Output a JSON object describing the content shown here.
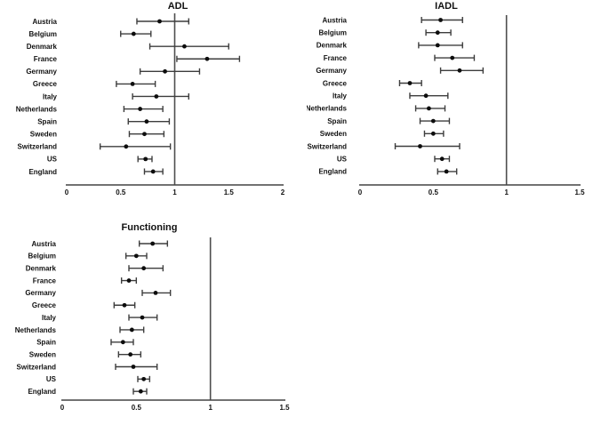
{
  "page": {
    "background": "#ffffff"
  },
  "colors": {
    "error_bar": "#3d3d3d",
    "marker": "#0d0d0d",
    "axis_line": "#444444",
    "reference_line": "#4d4d4d",
    "text": "#111111"
  },
  "chart_data": [
    {
      "type": "scatter",
      "subtype": "forest-plot-horizontal-error-bars",
      "title": "ADL",
      "xlabel": "",
      "ylabel": "",
      "grid": false,
      "legend": null,
      "xlim": [
        0,
        2
      ],
      "xticks": [
        "0",
        "0.5",
        "1",
        "1.5",
        "2"
      ],
      "xtick_values": [
        0,
        0.5,
        1,
        1.5,
        2
      ],
      "refline_x": 1,
      "categories": [
        "Austria",
        "Belgium",
        "Denmark",
        "France",
        "Germany",
        "Greece",
        "Italy",
        "Netherlands",
        "Spain",
        "Sweden",
        "Switzerland",
        "US",
        "England"
      ],
      "series": [
        {
          "name": "estimate-with-95ci",
          "points": [
            {
              "x": 0.86,
              "lo": 0.65,
              "hi": 1.13
            },
            {
              "x": 0.62,
              "lo": 0.5,
              "hi": 0.78
            },
            {
              "x": 1.09,
              "lo": 0.77,
              "hi": 1.5
            },
            {
              "x": 1.3,
              "lo": 1.02,
              "hi": 1.6
            },
            {
              "x": 0.91,
              "lo": 0.68,
              "hi": 1.23
            },
            {
              "x": 0.61,
              "lo": 0.46,
              "hi": 0.82
            },
            {
              "x": 0.83,
              "lo": 0.61,
              "hi": 1.13
            },
            {
              "x": 0.68,
              "lo": 0.53,
              "hi": 0.89
            },
            {
              "x": 0.74,
              "lo": 0.57,
              "hi": 0.95
            },
            {
              "x": 0.72,
              "lo": 0.58,
              "hi": 0.9
            },
            {
              "x": 0.55,
              "lo": 0.31,
              "hi": 0.96
            },
            {
              "x": 0.73,
              "lo": 0.66,
              "hi": 0.79
            },
            {
              "x": 0.8,
              "lo": 0.72,
              "hi": 0.89
            }
          ]
        }
      ]
    },
    {
      "type": "scatter",
      "subtype": "forest-plot-horizontal-error-bars",
      "title": "IADL",
      "xlabel": "",
      "ylabel": "",
      "grid": false,
      "legend": null,
      "xlim": [
        0,
        1.5
      ],
      "xticks": [
        "0",
        "0.5",
        "1",
        "1.5"
      ],
      "xtick_values": [
        0,
        0.5,
        1,
        1.5
      ],
      "refline_x": 1,
      "categories": [
        "Austria",
        "Belgium",
        "Denmark",
        "France",
        "Germany",
        "Greece",
        "Italy",
        "Netherlands",
        "Spain",
        "Sweden",
        "Switzerland",
        "US",
        "England"
      ],
      "series": [
        {
          "name": "estimate-with-95ci",
          "points": [
            {
              "x": 0.55,
              "lo": 0.42,
              "hi": 0.7
            },
            {
              "x": 0.53,
              "lo": 0.45,
              "hi": 0.62
            },
            {
              "x": 0.53,
              "lo": 0.4,
              "hi": 0.7
            },
            {
              "x": 0.63,
              "lo": 0.51,
              "hi": 0.78
            },
            {
              "x": 0.68,
              "lo": 0.55,
              "hi": 0.84
            },
            {
              "x": 0.34,
              "lo": 0.27,
              "hi": 0.42
            },
            {
              "x": 0.45,
              "lo": 0.34,
              "hi": 0.6
            },
            {
              "x": 0.47,
              "lo": 0.38,
              "hi": 0.58
            },
            {
              "x": 0.5,
              "lo": 0.41,
              "hi": 0.61
            },
            {
              "x": 0.5,
              "lo": 0.44,
              "hi": 0.57
            },
            {
              "x": 0.41,
              "lo": 0.24,
              "hi": 0.68
            },
            {
              "x": 0.56,
              "lo": 0.51,
              "hi": 0.61
            },
            {
              "x": 0.59,
              "lo": 0.53,
              "hi": 0.66
            }
          ]
        }
      ]
    },
    {
      "type": "scatter",
      "subtype": "forest-plot-horizontal-error-bars",
      "title": "Functioning",
      "xlabel": "",
      "ylabel": "",
      "grid": false,
      "legend": null,
      "xlim": [
        0,
        1.5
      ],
      "xticks": [
        "0",
        "0.5",
        "1",
        "1.5"
      ],
      "xtick_values": [
        0,
        0.5,
        1,
        1.5
      ],
      "refline_x": 1,
      "categories": [
        "Austria",
        "Belgium",
        "Denmark",
        "France",
        "Germany",
        "Greece",
        "Italy",
        "Netherlands",
        "Spain",
        "Sweden",
        "Switzerland",
        "US",
        "England"
      ],
      "series": [
        {
          "name": "estimate-with-95ci",
          "points": [
            {
              "x": 0.61,
              "lo": 0.52,
              "hi": 0.71
            },
            {
              "x": 0.5,
              "lo": 0.43,
              "hi": 0.57
            },
            {
              "x": 0.55,
              "lo": 0.45,
              "hi": 0.68
            },
            {
              "x": 0.45,
              "lo": 0.4,
              "hi": 0.5
            },
            {
              "x": 0.63,
              "lo": 0.54,
              "hi": 0.73
            },
            {
              "x": 0.42,
              "lo": 0.35,
              "hi": 0.49
            },
            {
              "x": 0.54,
              "lo": 0.45,
              "hi": 0.64
            },
            {
              "x": 0.47,
              "lo": 0.39,
              "hi": 0.55
            },
            {
              "x": 0.41,
              "lo": 0.33,
              "hi": 0.48
            },
            {
              "x": 0.46,
              "lo": 0.38,
              "hi": 0.53
            },
            {
              "x": 0.48,
              "lo": 0.36,
              "hi": 0.64
            },
            {
              "x": 0.55,
              "lo": 0.51,
              "hi": 0.59
            },
            {
              "x": 0.53,
              "lo": 0.48,
              "hi": 0.57
            }
          ]
        }
      ]
    }
  ]
}
